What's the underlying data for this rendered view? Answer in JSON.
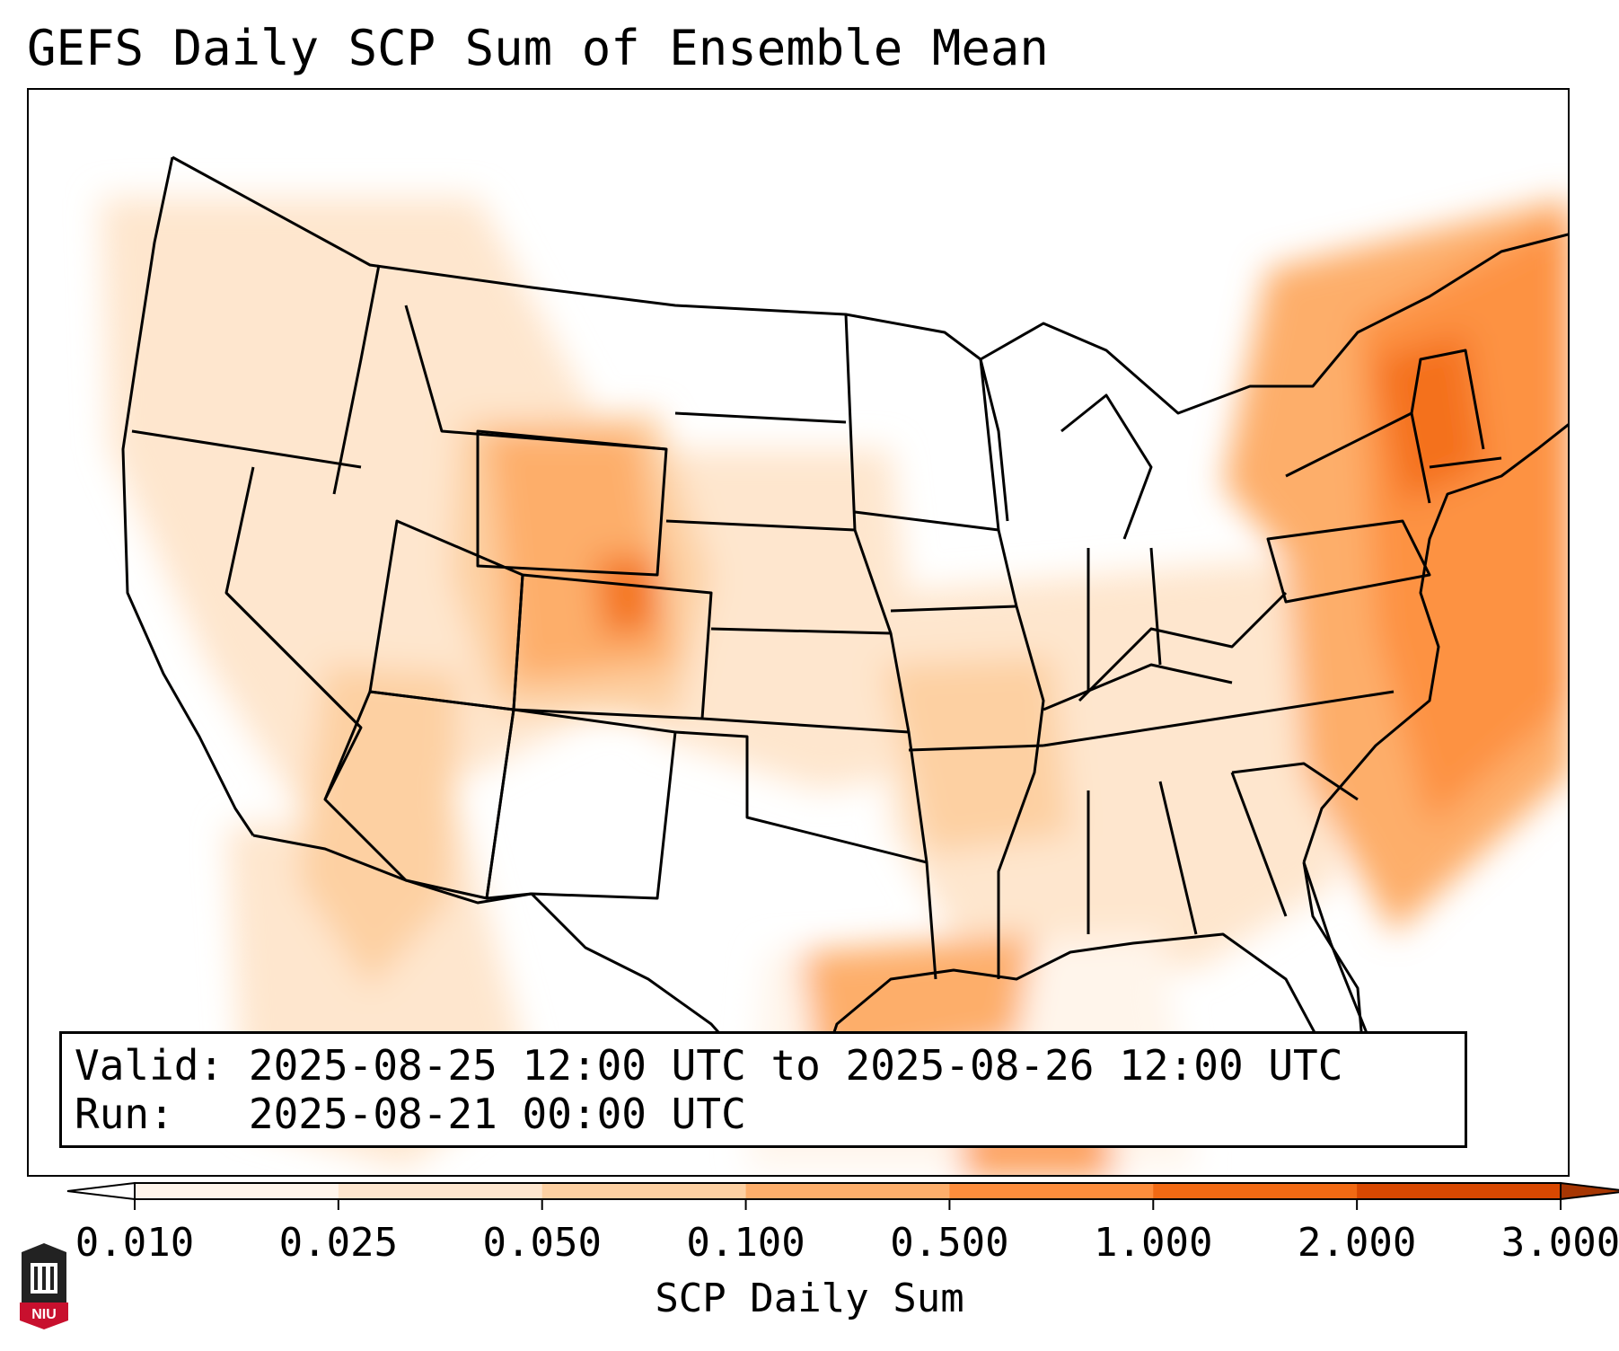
{
  "title": "GEFS Daily SCP Sum of Ensemble Mean",
  "info": {
    "valid_label": "Valid:",
    "valid_value": "2025-08-25 12:00 UTC to 2025-08-26 12:00 UTC",
    "run_label": "Run:",
    "run_value": "2025-08-21 00:00 UTC"
  },
  "colorbar": {
    "label": "SCP Daily Sum",
    "ticks": [
      "0.010",
      "0.025",
      "0.050",
      "0.100",
      "0.500",
      "1.000",
      "2.000",
      "3.000"
    ],
    "colors": [
      "#fff5eb",
      "#fee6ce",
      "#fdd0a2",
      "#fdae6b",
      "#fd8d3c",
      "#f16913",
      "#d94801"
    ],
    "under_color": "#ffffff",
    "over_color": "#a63603"
  },
  "logo": {
    "text": "NIU",
    "color": "#c8102e"
  },
  "colors": {
    "border": "#000000",
    "background": "#ffffff"
  }
}
